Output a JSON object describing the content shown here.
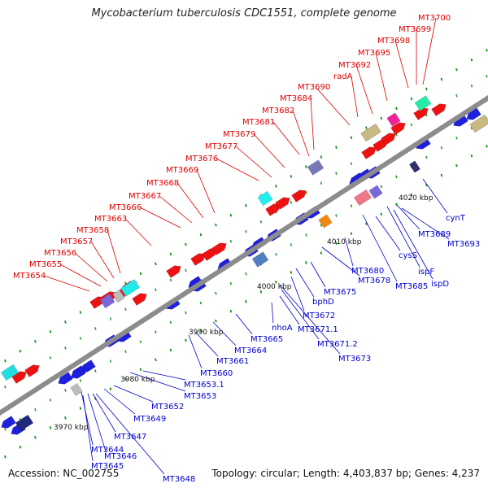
{
  "title": "Mycobacterium tuberculosis CDC1551, complete genome",
  "accession": "Accession: NC_002755",
  "summary": "Topology: circular; Length: 4,403,837 bp; Genes: 4,237",
  "colors": {
    "backbone": "#8c8c8c",
    "forward": "#ee1111",
    "reverse": "#1f1fe0",
    "tick_dot": "#1a8f1a",
    "red_label": "#dd0000",
    "blue_label": "#0000cc"
  },
  "scale_ticks": [
    {
      "label": "3970 kbp"
    },
    {
      "label": "3980 kbp"
    },
    {
      "label": "3990 kbp"
    },
    {
      "label": "4000 kbp"
    },
    {
      "label": "4010 kbp"
    },
    {
      "label": "4020 kbp"
    }
  ],
  "red_labels": [
    {
      "text": "MT3654"
    },
    {
      "text": "MT3655"
    },
    {
      "text": "MT3656"
    },
    {
      "text": "MT3657"
    },
    {
      "text": "MT3658"
    },
    {
      "text": "MT3663"
    },
    {
      "text": "MT3666"
    },
    {
      "text": "MT3667"
    },
    {
      "text": "MT3668"
    },
    {
      "text": "MT3669"
    },
    {
      "text": "MT3676"
    },
    {
      "text": "MT3677"
    },
    {
      "text": "MT3679"
    },
    {
      "text": "MT3681"
    },
    {
      "text": "MT3682"
    },
    {
      "text": "MT3684"
    },
    {
      "text": "MT3690"
    },
    {
      "text": "radA"
    },
    {
      "text": "MT3692"
    },
    {
      "text": "MT3695"
    },
    {
      "text": "MT3698"
    },
    {
      "text": "MT3699"
    },
    {
      "text": "MT3700"
    }
  ],
  "blue_labels": [
    {
      "text": "MT3644"
    },
    {
      "text": "MT3645"
    },
    {
      "text": "MT3646"
    },
    {
      "text": "MT3647"
    },
    {
      "text": "MT3648"
    },
    {
      "text": "MT3649"
    },
    {
      "text": "MT3652"
    },
    {
      "text": "MT3653"
    },
    {
      "text": "MT3653.1"
    },
    {
      "text": "MT3660"
    },
    {
      "text": "MT3661"
    },
    {
      "text": "MT3664"
    },
    {
      "text": "MT3665"
    },
    {
      "text": "nhoA"
    },
    {
      "text": "MT3671.1"
    },
    {
      "text": "MT3671.2"
    },
    {
      "text": "MT3673"
    },
    {
      "text": "MT3672"
    },
    {
      "text": "bphD"
    },
    {
      "text": "MT3675"
    },
    {
      "text": "MT3678"
    },
    {
      "text": "MT3680"
    },
    {
      "text": "MT3685"
    },
    {
      "text": "cysS"
    },
    {
      "text": "ispF"
    },
    {
      "text": "ispD"
    },
    {
      "text": "MT3689"
    },
    {
      "text": "MT3693"
    },
    {
      "text": "cynT"
    }
  ]
}
